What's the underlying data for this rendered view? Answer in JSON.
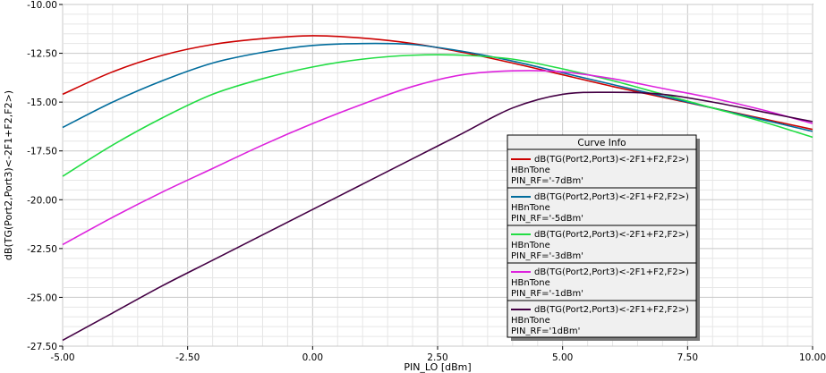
{
  "chart_data": {
    "type": "line",
    "xlabel": "PIN_LO [dBm]",
    "ylabel": "dB(TG(Port2,Port3)<-2F1+F2,F2>)",
    "xlim": [
      -5.0,
      10.0
    ],
    "ylim": [
      -27.5,
      -10.0
    ],
    "x_ticks": [
      "-5.00",
      "-2.50",
      "0.00",
      "2.50",
      "5.00",
      "7.50",
      "10.00"
    ],
    "y_ticks": [
      "-10.00",
      "-12.50",
      "-15.00",
      "-17.50",
      "-20.00",
      "-22.50",
      "-25.00",
      "-27.50"
    ],
    "grid": true,
    "legend": {
      "title": "Curve Info",
      "placement": "bottom-right"
    },
    "series": [
      {
        "name": "dB(TG(Port2,Port3)<-2F1+F2,F2>)",
        "sub1": "HBnTone",
        "sub2": "PIN_RF='-7dBm'",
        "color": "#cc0000",
        "x": [
          -5,
          -4,
          -3,
          -2,
          -1,
          0,
          1,
          2,
          3,
          4,
          5,
          6,
          7,
          8,
          9,
          10
        ],
        "y": [
          -14.6,
          -13.45,
          -12.6,
          -12.05,
          -11.75,
          -11.6,
          -11.72,
          -12.0,
          -12.45,
          -13.0,
          -13.6,
          -14.2,
          -14.75,
          -15.3,
          -15.85,
          -16.4
        ]
      },
      {
        "name": "dB(TG(Port2,Port3)<-2F1+F2,F2>)",
        "sub1": "HBnTone",
        "sub2": "PIN_RF='-5dBm'",
        "color": "#006c9c",
        "x": [
          -5,
          -4,
          -3,
          -2,
          -1,
          0,
          1,
          2,
          3,
          4,
          5,
          6,
          7,
          8,
          9,
          10
        ],
        "y": [
          -16.3,
          -15.0,
          -13.9,
          -13.0,
          -12.45,
          -12.1,
          -12.0,
          -12.05,
          -12.4,
          -12.9,
          -13.5,
          -14.1,
          -14.7,
          -15.3,
          -15.9,
          -16.5
        ]
      },
      {
        "name": "dB(TG(Port2,Port3)<-2F1+F2,F2>)",
        "sub1": "HBnTone",
        "sub2": "PIN_RF='-3dBm'",
        "color": "#22dd44",
        "x": [
          -5,
          -4,
          -3,
          -2,
          -1,
          0,
          1,
          2,
          3,
          4,
          5,
          6,
          7,
          8,
          9,
          10
        ],
        "y": [
          -18.8,
          -17.2,
          -15.8,
          -14.6,
          -13.8,
          -13.2,
          -12.8,
          -12.6,
          -12.6,
          -12.8,
          -13.3,
          -13.9,
          -14.6,
          -15.3,
          -16.0,
          -16.8
        ]
      },
      {
        "name": "dB(TG(Port2,Port3)<-2F1+F2,F2>)",
        "sub1": "HBnTone",
        "sub2": "PIN_RF='-1dBm'",
        "color": "#dd22dd",
        "x": [
          -5,
          -4,
          -3,
          -2,
          -1,
          0,
          1,
          2,
          3,
          4,
          5,
          6,
          7,
          8,
          9,
          10
        ],
        "y": [
          -22.3,
          -20.9,
          -19.6,
          -18.4,
          -17.2,
          -16.1,
          -15.1,
          -14.2,
          -13.6,
          -13.4,
          -13.45,
          -13.8,
          -14.3,
          -14.8,
          -15.4,
          -16.1
        ]
      },
      {
        "name": "dB(TG(Port2,Port3)<-2F1+F2,F2>)",
        "sub1": "HBnTone",
        "sub2": "PIN_RF='1dBm'",
        "color": "#440044",
        "x": [
          -5,
          -4,
          -3,
          -2,
          -1,
          0,
          1,
          2,
          3,
          4,
          5,
          6,
          7,
          8,
          9,
          10
        ],
        "y": [
          -27.2,
          -25.8,
          -24.4,
          -23.1,
          -21.8,
          -20.5,
          -19.2,
          -17.9,
          -16.6,
          -15.3,
          -14.6,
          -14.5,
          -14.6,
          -15.0,
          -15.5,
          -16.0
        ]
      }
    ]
  }
}
